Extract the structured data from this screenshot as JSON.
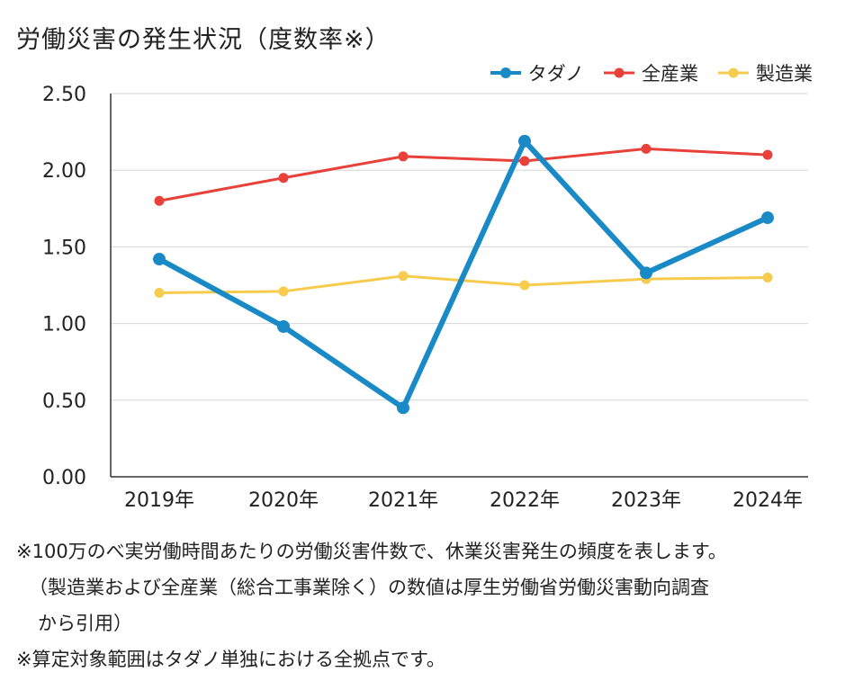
{
  "chart_data": {
    "type": "line",
    "title": "労働災害の発生状況（度数率※）",
    "categories": [
      "2019年",
      "2020年",
      "2021年",
      "2022年",
      "2023年",
      "2024年"
    ],
    "series": [
      {
        "name": "タダノ",
        "color": "#1a8ac6",
        "values": [
          1.42,
          0.98,
          0.45,
          2.19,
          1.33,
          1.69
        ]
      },
      {
        "name": "全産業",
        "color": "#e8413a",
        "values": [
          1.8,
          1.95,
          2.09,
          2.06,
          2.14,
          2.1
        ]
      },
      {
        "name": "製造業",
        "color": "#f7cb4d",
        "values": [
          1.2,
          1.21,
          1.31,
          1.25,
          1.29,
          1.3
        ]
      }
    ],
    "yticks": [
      "0.00",
      "0.50",
      "1.00",
      "1.50",
      "2.00",
      "2.50"
    ],
    "ylim": [
      0,
      2.5
    ],
    "grid": true,
    "legend": "top-right"
  },
  "notes": [
    "※100万のべ実労働時間あたりの労働災害件数で、休業災害発生の頻度を表します。",
    "（製造業および全産業（総合工事業除く）の数値は厚生労働省労働災害動向調査",
    "から引用）",
    "※算定対象範囲はタダノ単独における全拠点です。"
  ]
}
